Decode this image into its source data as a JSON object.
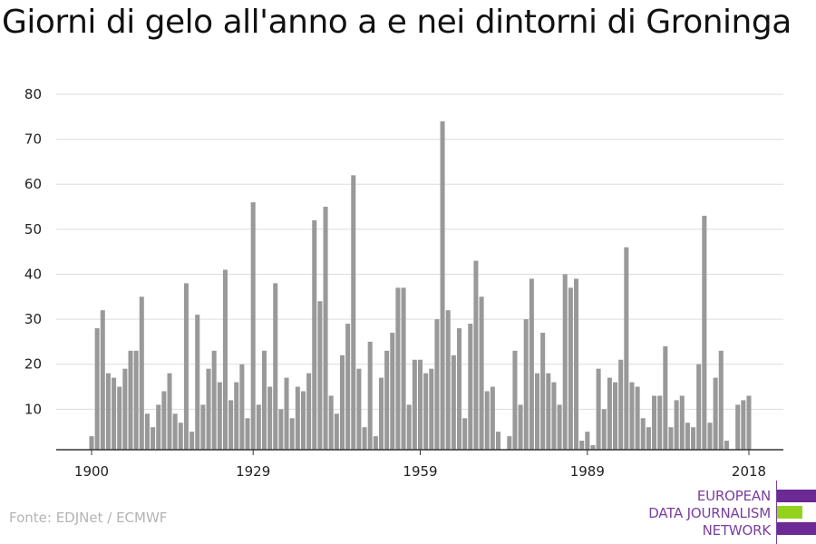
{
  "title": "Giorni di gelo all'anno a e nei dintorni di Groninga",
  "source": "Fonte: EDJNet / ECMWF",
  "logo": {
    "lines": [
      "EUROPEAN",
      "DATA JOURNALISM",
      "NETWORK"
    ],
    "colors": {
      "purple": "#6b2a94",
      "green": "#93d31e"
    }
  },
  "chart_data": {
    "type": "bar",
    "title": "Giorni di gelo all'anno a e nei dintorni di Groninga",
    "xlabel": "",
    "ylabel": "",
    "x_ticks": [
      1900,
      1929,
      1959,
      1989,
      2018
    ],
    "y_ticks": [
      10,
      20,
      30,
      40,
      50,
      60,
      70,
      80
    ],
    "ylim": [
      1,
      82
    ],
    "grid": true,
    "bar_color": "#999999",
    "x": [
      1900,
      1901,
      1902,
      1903,
      1904,
      1905,
      1906,
      1907,
      1908,
      1909,
      1910,
      1911,
      1912,
      1913,
      1914,
      1915,
      1916,
      1917,
      1918,
      1919,
      1920,
      1921,
      1922,
      1923,
      1924,
      1925,
      1926,
      1927,
      1928,
      1929,
      1930,
      1931,
      1932,
      1933,
      1934,
      1935,
      1936,
      1937,
      1938,
      1939,
      1940,
      1941,
      1942,
      1943,
      1944,
      1945,
      1946,
      1947,
      1948,
      1949,
      1950,
      1951,
      1952,
      1953,
      1954,
      1955,
      1956,
      1957,
      1958,
      1959,
      1960,
      1961,
      1962,
      1963,
      1964,
      1965,
      1966,
      1967,
      1968,
      1969,
      1970,
      1971,
      1972,
      1973,
      1974,
      1975,
      1976,
      1977,
      1978,
      1979,
      1980,
      1981,
      1982,
      1983,
      1984,
      1985,
      1986,
      1987,
      1988,
      1989,
      1990,
      1991,
      1992,
      1993,
      1994,
      1995,
      1996,
      1997,
      1998,
      1999,
      2000,
      2001,
      2002,
      2003,
      2004,
      2005,
      2006,
      2007,
      2008,
      2009,
      2010,
      2011,
      2012,
      2013,
      2014,
      2015,
      2016,
      2017,
      2018
    ],
    "values": [
      4,
      28,
      32,
      18,
      17,
      15,
      19,
      23,
      23,
      35,
      9,
      6,
      11,
      14,
      18,
      9,
      7,
      38,
      5,
      31,
      11,
      19,
      23,
      16,
      41,
      12,
      16,
      20,
      8,
      56,
      11,
      23,
      15,
      38,
      10,
      17,
      8,
      15,
      14,
      18,
      52,
      34,
      55,
      13,
      9,
      22,
      29,
      62,
      19,
      6,
      25,
      4,
      17,
      23,
      27,
      37,
      37,
      11,
      21,
      21,
      18,
      19,
      30,
      74,
      32,
      22,
      28,
      8,
      29,
      43,
      35,
      14,
      15,
      5,
      0,
      4,
      23,
      11,
      30,
      39,
      18,
      27,
      18,
      16,
      11,
      40,
      37,
      39,
      3,
      5,
      2,
      19,
      10,
      17,
      16,
      21,
      46,
      16,
      15,
      8,
      6,
      13,
      13,
      24,
      6,
      12,
      13,
      7,
      6,
      20,
      53,
      7,
      17,
      23,
      3,
      0,
      11,
      12,
      13
    ]
  }
}
